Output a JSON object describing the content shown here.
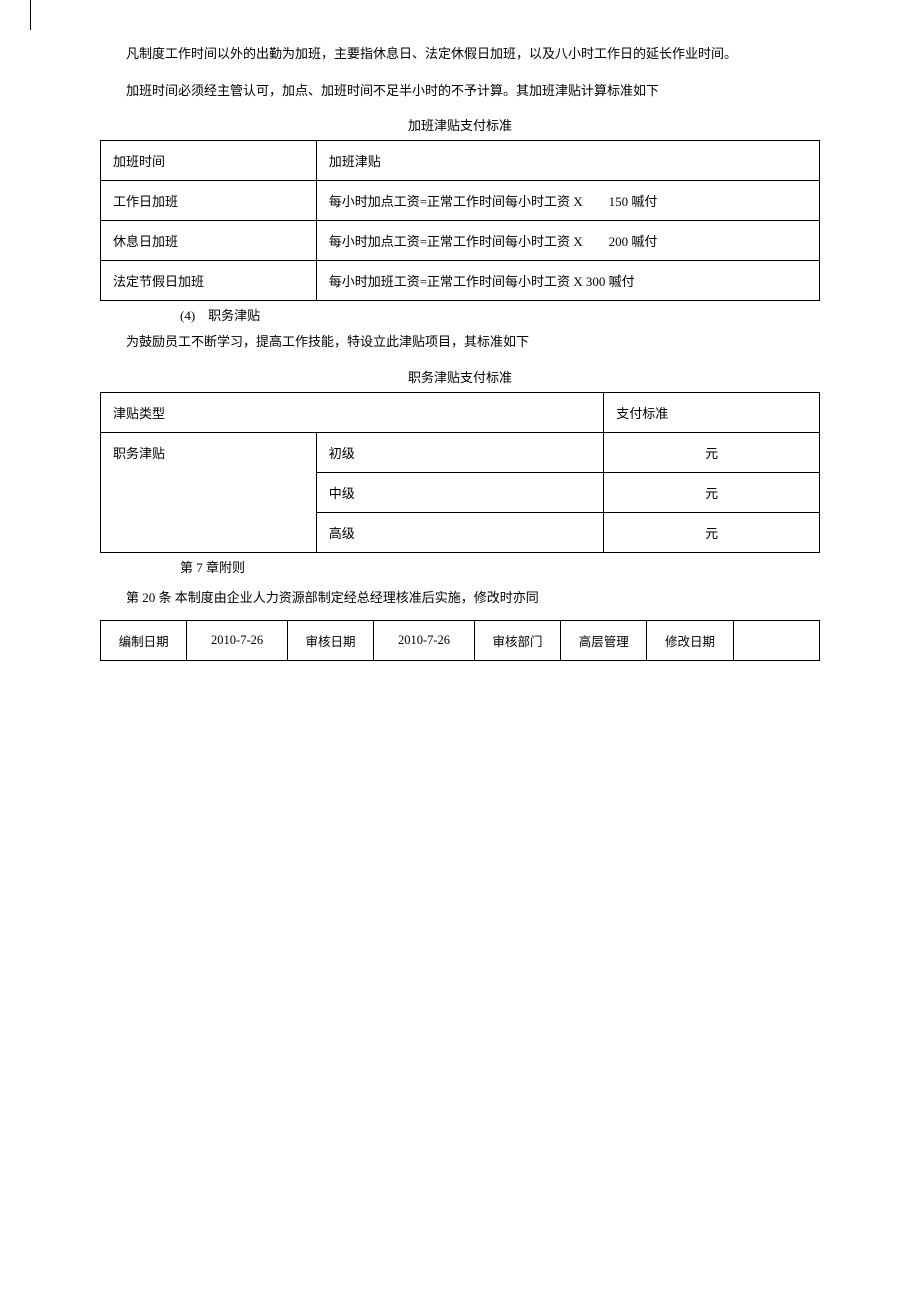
{
  "para1": "凡制度工作时间以外的出勤为加班，主要指休息日、法定休假日加班，以及八小时工作日的延长作业时间。",
  "para2": "加班时间必须经主管认可，加点、加班时间不足半小时的不予计算。其加班津贴计算标准如下",
  "table1_title": "加班津贴支付标准",
  "table1": {
    "header": [
      "加班时间",
      "加班津贴"
    ],
    "rows": [
      [
        "工作日加班",
        "每小时加点工资=正常工作时间每小时工资 X　　150 嘁付"
      ],
      [
        "休息日加班",
        "每小时加点工资=正常工作时间每小时工资 X　　200 嘁付"
      ],
      [
        "法定节假日加班",
        "每小时加班工资=正常工作时间每小时工资 X 300 嘁付"
      ]
    ]
  },
  "item4": "(4)　职务津贴",
  "para3": "为鼓励员工不断学习，提高工作技能，特设立此津贴项目，其标准如下",
  "table2_title": "职务津贴支付标准",
  "table2": {
    "header": [
      "津贴类型",
      "支付标准"
    ],
    "type_label": "职务津贴",
    "levels": [
      "初级",
      "中级",
      "高级"
    ],
    "unit": "元"
  },
  "chapter7": "第 7 章附则",
  "article20": "第 20 条  本制度由企业人力资源部制定经总经理核准后实施，修改时亦同",
  "table3": {
    "labels": [
      "编制日期",
      "审核日期",
      "审核部门",
      "修改日期"
    ],
    "values": [
      "2010-7-26",
      "2010-7-26",
      "高层管理",
      ""
    ]
  }
}
